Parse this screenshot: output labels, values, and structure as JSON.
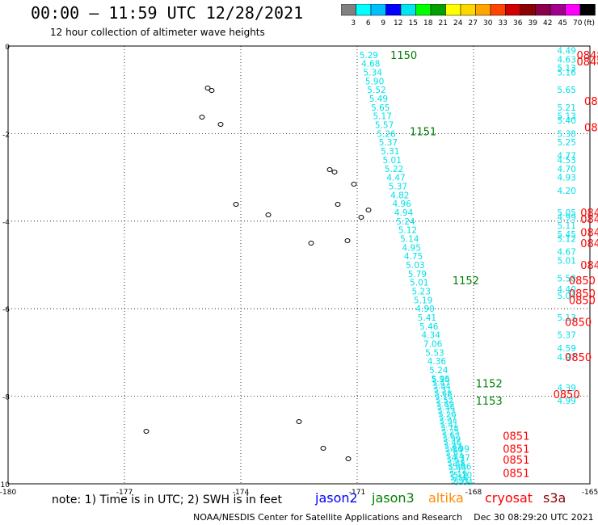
{
  "title": "00:00 – 11:59 UTC 12/28/2021",
  "subtitle": "12 hour collection of altimeter wave heights",
  "legend": {
    "colors": [
      "#808080",
      "#00ffff",
      "#00bfff",
      "#0000ff",
      "#00e5ee",
      "#00ff00",
      "#00a000",
      "#ffff00",
      "#ffd700",
      "#ffa500",
      "#ff4500",
      "#d00000",
      "#8b0000",
      "#8b004b",
      "#a0008b",
      "#ff00ff",
      "#000000"
    ],
    "labels": [
      "3",
      "6",
      "9",
      "12",
      "15",
      "18",
      "21",
      "24",
      "27",
      "30",
      "33",
      "36",
      "39",
      "42",
      "45",
      "70",
      "(ft)"
    ]
  },
  "chart_data": {
    "type": "scatter",
    "xlim": [
      -180,
      -165
    ],
    "ylim": [
      -10,
      0
    ],
    "x_ticks": [
      "-180",
      "-177",
      "-174",
      "-171",
      "-168",
      "-165"
    ],
    "y_ticks": [
      "0",
      "-2",
      "-4",
      "-6",
      "-8",
      "-10"
    ],
    "grid": true,
    "tracks": {
      "jason3_upper": [
        {
          "lon": -170.7,
          "lat": -0.2,
          "v": "5.29"
        },
        {
          "lon": -170.65,
          "lat": -0.4,
          "v": "4.68"
        },
        {
          "lon": -170.6,
          "lat": -0.6,
          "v": "5.34"
        },
        {
          "lon": -170.55,
          "lat": -0.8,
          "v": "5.90"
        },
        {
          "lon": -170.5,
          "lat": -1.0,
          "v": "5.52"
        },
        {
          "lon": -170.45,
          "lat": -1.2,
          "v": "5.49"
        },
        {
          "lon": -170.4,
          "lat": -1.4,
          "v": "5.65"
        },
        {
          "lon": -170.35,
          "lat": -1.6,
          "v": "5.17"
        },
        {
          "lon": -170.3,
          "lat": -1.8,
          "v": "5.57"
        },
        {
          "lon": -170.25,
          "lat": -2.0,
          "v": "5.26"
        },
        {
          "lon": -170.2,
          "lat": -2.2,
          "v": "5.37"
        },
        {
          "lon": -170.15,
          "lat": -2.4,
          "v": "5.31"
        },
        {
          "lon": -170.1,
          "lat": -2.6,
          "v": "5.01"
        },
        {
          "lon": -170.05,
          "lat": -2.8,
          "v": "5.22"
        },
        {
          "lon": -170.0,
          "lat": -3.0,
          "v": "4.47"
        },
        {
          "lon": -169.95,
          "lat": -3.2,
          "v": "5.37"
        },
        {
          "lon": -169.9,
          "lat": -3.4,
          "v": "4.82"
        },
        {
          "lon": -169.85,
          "lat": -3.6,
          "v": "4.96"
        },
        {
          "lon": -169.8,
          "lat": -3.8,
          "v": "4.94"
        },
        {
          "lon": -169.75,
          "lat": -4.0,
          "v": "5.24"
        },
        {
          "lon": -169.7,
          "lat": -4.2,
          "v": "5.12"
        },
        {
          "lon": -169.65,
          "lat": -4.4,
          "v": "5.14"
        },
        {
          "lon": -169.6,
          "lat": -4.6,
          "v": "4.95"
        },
        {
          "lon": -169.55,
          "lat": -4.8,
          "v": "4.75"
        },
        {
          "lon": -169.5,
          "lat": -5.0,
          "v": "5.03"
        },
        {
          "lon": -169.45,
          "lat": -5.2,
          "v": "5.79"
        },
        {
          "lon": -169.4,
          "lat": -5.4,
          "v": "5.01"
        },
        {
          "lon": -169.35,
          "lat": -5.6,
          "v": "5.23"
        },
        {
          "lon": -169.3,
          "lat": -5.8,
          "v": "5.19"
        },
        {
          "lon": -169.25,
          "lat": -6.0,
          "v": "4.90"
        },
        {
          "lon": -169.2,
          "lat": -6.2,
          "v": "5.41"
        },
        {
          "lon": -169.15,
          "lat": -6.4,
          "v": "5.46"
        },
        {
          "lon": -169.1,
          "lat": -6.6,
          "v": "4.34"
        },
        {
          "lon": -169.05,
          "lat": -6.8,
          "v": "7.06"
        },
        {
          "lon": -169.0,
          "lat": -7.0,
          "v": "5.53"
        },
        {
          "lon": -168.95,
          "lat": -7.2,
          "v": "4.36"
        },
        {
          "lon": -168.9,
          "lat": -7.4,
          "v": "5.24"
        },
        {
          "lon": -168.85,
          "lat": -7.6,
          "v": "5.95"
        }
      ],
      "jason3_lower": [
        {
          "lon": -168.35,
          "lat": -9.2,
          "v": "4.99"
        },
        {
          "lon": -168.33,
          "lat": -9.4,
          "v": "4.37"
        },
        {
          "lon": -168.3,
          "lat": -9.6,
          "v": "5.06"
        },
        {
          "lon": -168.28,
          "lat": -9.8,
          "v": "5.10"
        },
        {
          "lon": -168.26,
          "lat": -9.95,
          "v": "5.04"
        }
      ],
      "cryosat_col": [
        {
          "lon": -165.6,
          "lat": -0.1,
          "v": "4.49"
        },
        {
          "lon": -165.6,
          "lat": -0.3,
          "v": "4.63"
        },
        {
          "lon": -165.6,
          "lat": -0.5,
          "v": "5.13"
        },
        {
          "lon": -165.6,
          "lat": -0.6,
          "v": "5.16"
        },
        {
          "lon": -165.6,
          "lat": -1.0,
          "v": "5.65"
        },
        {
          "lon": -165.6,
          "lat": -1.4,
          "v": "5.21"
        },
        {
          "lon": -165.6,
          "lat": -1.6,
          "v": "5.13"
        },
        {
          "lon": -165.6,
          "lat": -1.7,
          "v": "5.40"
        },
        {
          "lon": -165.6,
          "lat": -2.0,
          "v": "5.38"
        },
        {
          "lon": -165.6,
          "lat": -2.2,
          "v": "5.25"
        },
        {
          "lon": -165.6,
          "lat": -2.5,
          "v": "4.77"
        },
        {
          "lon": -165.6,
          "lat": -2.6,
          "v": "4.53"
        },
        {
          "lon": -165.6,
          "lat": -2.8,
          "v": "4.70"
        },
        {
          "lon": -165.6,
          "lat": -3.0,
          "v": "4.93"
        },
        {
          "lon": -165.6,
          "lat": -3.3,
          "v": "4.20"
        },
        {
          "lon": -165.6,
          "lat": -3.8,
          "v": "5.05"
        },
        {
          "lon": -165.6,
          "lat": -3.9,
          "v": "4.99"
        },
        {
          "lon": -165.6,
          "lat": -4.1,
          "v": "5.11"
        },
        {
          "lon": -165.6,
          "lat": -4.3,
          "v": "5.45"
        },
        {
          "lon": -165.6,
          "lat": -4.4,
          "v": "5.12"
        },
        {
          "lon": -165.6,
          "lat": -4.7,
          "v": "4.67"
        },
        {
          "lon": -165.6,
          "lat": -4.9,
          "v": "5.01"
        },
        {
          "lon": -165.6,
          "lat": -5.3,
          "v": "5.58"
        },
        {
          "lon": -165.6,
          "lat": -5.55,
          "v": "4.40"
        },
        {
          "lon": -165.6,
          "lat": -5.7,
          "v": "5.04"
        },
        {
          "lon": -165.6,
          "lat": -6.2,
          "v": "5.13"
        },
        {
          "lon": -165.6,
          "lat": -6.6,
          "v": "5.37"
        },
        {
          "lon": -165.6,
          "lat": -6.9,
          "v": "4.59"
        },
        {
          "lon": -165.6,
          "lat": -7.1,
          "v": "4.97"
        },
        {
          "lon": -165.6,
          "lat": -7.8,
          "v": "4.39"
        },
        {
          "lon": -165.6,
          "lat": -8.1,
          "v": "4.99"
        }
      ]
    },
    "pass_labels": [
      {
        "text": "1150",
        "color": "#008000",
        "lon": -169.8,
        "lat": -0.2
      },
      {
        "text": "1151",
        "color": "#008000",
        "lon": -169.3,
        "lat": -1.95
      },
      {
        "text": "1152",
        "color": "#008000",
        "lon": -168.2,
        "lat": -5.35
      },
      {
        "text": "1152",
        "color": "#008000",
        "lon": -167.6,
        "lat": -7.7
      },
      {
        "text": "1153",
        "color": "#008000",
        "lon": -167.6,
        "lat": -8.1
      },
      {
        "text": "0848",
        "color": "#ff0000",
        "lon": -165.0,
        "lat": -0.2
      },
      {
        "text": "0848",
        "color": "#ff0000",
        "lon": -165.0,
        "lat": -0.35
      },
      {
        "text": "0849",
        "color": "#ff0000",
        "lon": -164.8,
        "lat": -1.25
      },
      {
        "text": "0849",
        "color": "#ff0000",
        "lon": -164.8,
        "lat": -1.85
      },
      {
        "text": "0849",
        "color": "#ff0000",
        "lon": -164.9,
        "lat": -3.8
      },
      {
        "text": "0849",
        "color": "#ff0000",
        "lon": -164.9,
        "lat": -3.95
      },
      {
        "text": "0849",
        "color": "#ff0000",
        "lon": -164.9,
        "lat": -4.25
      },
      {
        "text": "0849",
        "color": "#ff0000",
        "lon": -164.9,
        "lat": -4.5
      },
      {
        "text": "0849",
        "color": "#ff0000",
        "lon": -164.9,
        "lat": -5.0
      },
      {
        "text": "0850",
        "color": "#ff0000",
        "lon": -165.2,
        "lat": -5.35
      },
      {
        "text": "0850",
        "color": "#ff0000",
        "lon": -165.2,
        "lat": -5.65
      },
      {
        "text": "0850",
        "color": "#ff0000",
        "lon": -165.2,
        "lat": -5.8
      },
      {
        "text": "0850",
        "color": "#ff0000",
        "lon": -165.3,
        "lat": -6.3
      },
      {
        "text": "0850",
        "color": "#ff0000",
        "lon": -165.3,
        "lat": -7.1
      },
      {
        "text": "0850",
        "color": "#ff0000",
        "lon": -165.6,
        "lat": -7.95
      },
      {
        "text": "0851",
        "color": "#ff0000",
        "lon": -166.9,
        "lat": -8.9
      },
      {
        "text": "0851",
        "color": "#ff0000",
        "lon": -166.9,
        "lat": -9.2
      },
      {
        "text": "0851",
        "color": "#ff0000",
        "lon": -166.9,
        "lat": -9.45
      },
      {
        "text": "0851",
        "color": "#ff0000",
        "lon": -166.9,
        "lat": -9.75
      }
    ]
  },
  "note": "note:  1) Time is in UTC;  2) SWH is in feet",
  "satellites": [
    {
      "name": "jason2",
      "color": "#0000ff"
    },
    {
      "name": "jason3",
      "color": "#008000"
    },
    {
      "name": "altika",
      "color": "#ff8c00"
    },
    {
      "name": "cryosat",
      "color": "#ff0000"
    },
    {
      "name": "s3a",
      "color": "#8b0000"
    }
  ],
  "credit": "NOAA/NESDIS Center for Satellite Applications and Research    Dec 30 08:29:20 UTC 2021"
}
